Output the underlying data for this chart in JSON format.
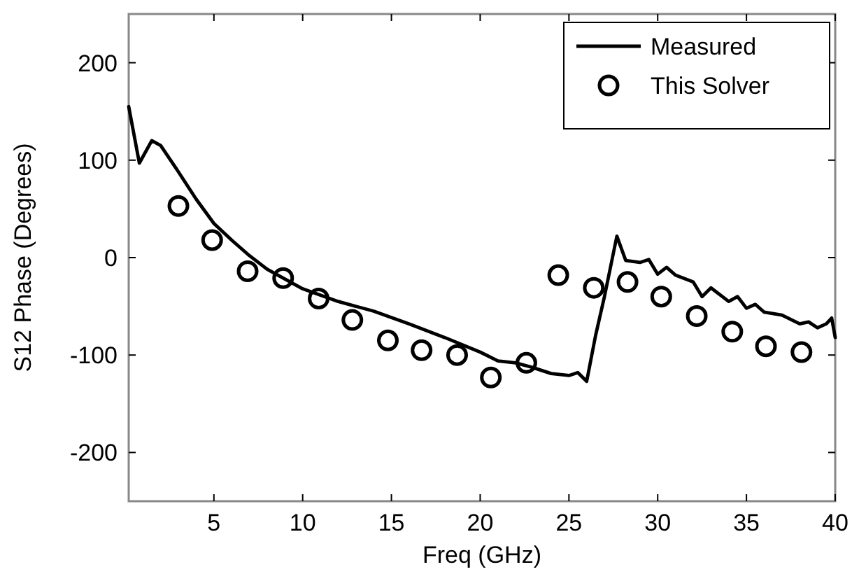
{
  "chart_data": {
    "type": "line",
    "xlabel": "Freq (GHz)",
    "ylabel": "S12 Phase (Degrees)",
    "xlim": [
      0.2,
      40
    ],
    "ylim": [
      -250,
      250
    ],
    "xticks": [
      5,
      10,
      15,
      20,
      25,
      30,
      35,
      40
    ],
    "yticks": [
      -200,
      -100,
      0,
      100,
      200
    ],
    "grid": false,
    "legend": "top right",
    "series": [
      {
        "name": "Measured",
        "color": "#000000",
        "marker": "none",
        "x": [
          0.2,
          0.8,
          1.5,
          2,
          3,
          4,
          5,
          6,
          7,
          8,
          9,
          10,
          12,
          14,
          16,
          18,
          20,
          21,
          22,
          23,
          24,
          25,
          25.5,
          26,
          26.5,
          27,
          27.7,
          28.2,
          29,
          29.5,
          30,
          30.5,
          31,
          32,
          32.5,
          33,
          34,
          34.5,
          35,
          35.5,
          36,
          37,
          38,
          38.5,
          39,
          39.5,
          39.8,
          40
        ],
        "values": [
          155,
          97,
          120,
          115,
          88,
          60,
          35,
          18,
          2,
          -12,
          -22,
          -32,
          -45,
          -55,
          -68,
          -82,
          -97,
          -106,
          -108,
          -113,
          -119,
          -121,
          -118,
          -127,
          -80,
          -40,
          22,
          -3,
          -5,
          -2,
          -17,
          -10,
          -18,
          -25,
          -40,
          -31,
          -45,
          -40,
          -52,
          -48,
          -56,
          -59,
          -68,
          -66,
          -72,
          -68,
          -62,
          -82
        ]
      },
      {
        "name": "This Solver",
        "type": "scatter",
        "color": "#000000",
        "marker": "circle",
        "x": [
          3,
          4.9,
          6.9,
          8.9,
          10.9,
          12.8,
          14.8,
          16.7,
          18.7,
          20.6,
          22.6,
          24.4,
          26.4,
          28.3,
          30.2,
          32.2,
          34.2,
          36.1,
          38.1
        ],
        "values": [
          53,
          18,
          -14,
          -21,
          -42,
          -64,
          -85,
          -95,
          -100,
          -123,
          -108,
          -18,
          -31,
          -25,
          -40,
          -60,
          -76,
          -91,
          -97
        ]
      }
    ]
  }
}
